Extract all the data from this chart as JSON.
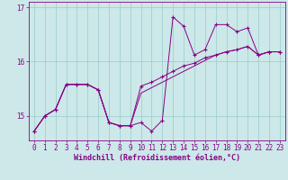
{
  "xlabel": "Windchill (Refroidissement éolien,°C)",
  "background_color": "#cce8e8",
  "line_color": "#880088",
  "grid_color": "#99cccc",
  "xlim": [
    -0.5,
    23.5
  ],
  "ylim": [
    14.55,
    17.1
  ],
  "yticks": [
    15,
    16,
    17
  ],
  "xticks": [
    0,
    1,
    2,
    3,
    4,
    5,
    6,
    7,
    8,
    9,
    10,
    11,
    12,
    13,
    14,
    15,
    16,
    17,
    18,
    19,
    20,
    21,
    22,
    23
  ],
  "series1_x": [
    0,
    1,
    2,
    3,
    4,
    5,
    6,
    7,
    8,
    9,
    10,
    11,
    12,
    13,
    14,
    15,
    16,
    17,
    18,
    19,
    20,
    21,
    22,
    23
  ],
  "series1_y": [
    14.72,
    15.0,
    15.12,
    15.58,
    15.58,
    15.58,
    15.48,
    14.88,
    14.82,
    14.82,
    14.88,
    14.72,
    14.92,
    16.82,
    16.65,
    16.12,
    16.22,
    16.68,
    16.68,
    16.55,
    16.62,
    16.12,
    16.18,
    16.18
  ],
  "series2_x": [
    0,
    1,
    2,
    3,
    4,
    5,
    6,
    7,
    8,
    9,
    10,
    11,
    12,
    13,
    14,
    15,
    16,
    17,
    18,
    19,
    20,
    21,
    22,
    23
  ],
  "series2_y": [
    14.72,
    15.0,
    15.12,
    15.58,
    15.58,
    15.58,
    15.48,
    14.88,
    14.82,
    14.82,
    15.55,
    15.62,
    15.72,
    15.82,
    15.92,
    15.97,
    16.07,
    16.12,
    16.18,
    16.22,
    16.28,
    16.12,
    16.18,
    16.18
  ],
  "series3_x": [
    0,
    1,
    2,
    3,
    4,
    5,
    6,
    7,
    8,
    9,
    10,
    11,
    12,
    13,
    14,
    15,
    16,
    17,
    18,
    19,
    20,
    21,
    22,
    23
  ],
  "series3_y": [
    14.72,
    15.0,
    15.12,
    15.58,
    15.58,
    15.58,
    15.48,
    14.88,
    14.82,
    14.82,
    15.42,
    15.52,
    15.62,
    15.72,
    15.82,
    15.92,
    16.02,
    16.12,
    16.18,
    16.22,
    16.28,
    16.12,
    16.18,
    16.18
  ],
  "tick_fontsize": 5.5,
  "xlabel_fontsize": 6.0
}
